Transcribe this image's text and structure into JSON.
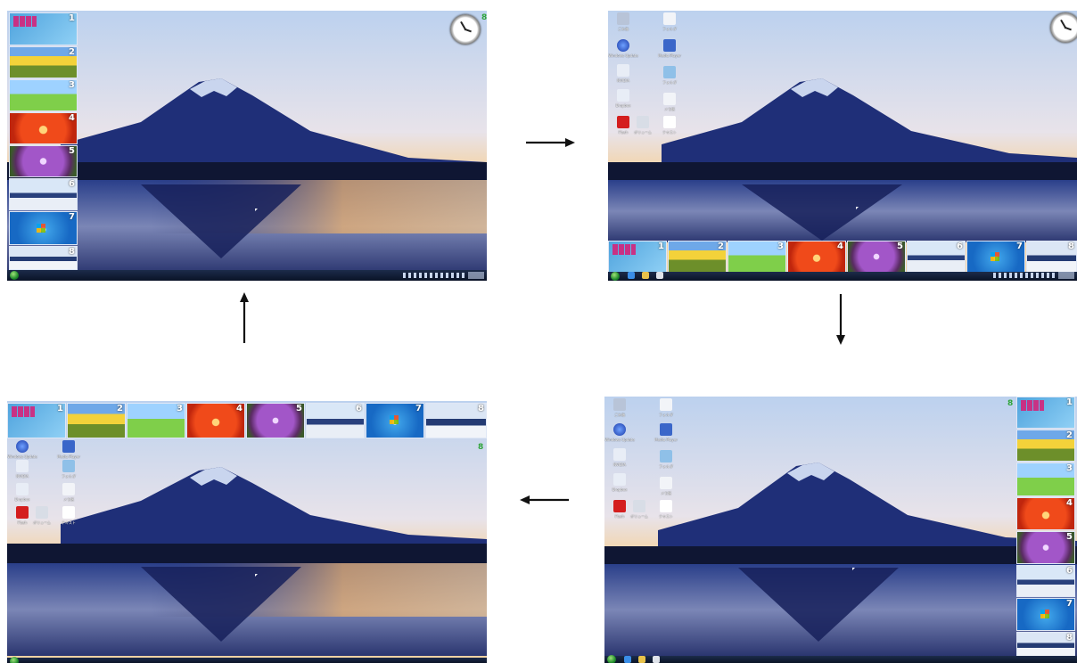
{
  "colors": {
    "sky_top": "#bfd3ef",
    "sky_glow": "#f3c27a",
    "mountain": "#1f2f78",
    "lake": "#1b2a63",
    "taskbar": "#0a1326"
  },
  "thumbnails": [
    {
      "num": "1",
      "icon": "tile-start-screen"
    },
    {
      "num": "2",
      "icon": "sunflowers"
    },
    {
      "num": "3",
      "icon": "space-needle"
    },
    {
      "num": "4",
      "icon": "red-flower"
    },
    {
      "num": "5",
      "icon": "purple-flower"
    },
    {
      "num": "6",
      "icon": "mount-fuji"
    },
    {
      "num": "7",
      "icon": "windows7-logo"
    },
    {
      "num": "8",
      "icon": "mount-fuji"
    }
  ],
  "desktop_icons": {
    "col1": [
      "ごみ箱",
      "Windows Update",
      "NVIDIA",
      "Dropbox",
      "Flash"
    ],
    "col2": [
      "フォルダ",
      "Media Player",
      "フォルダ",
      "メモ帳"
    ],
    "extra": [
      "ボリューム",
      "テキスト"
    ]
  },
  "gadget_badge": "8",
  "arrows": [
    "right-arrow",
    "down-arrow",
    "left-arrow",
    "up-arrow"
  ]
}
